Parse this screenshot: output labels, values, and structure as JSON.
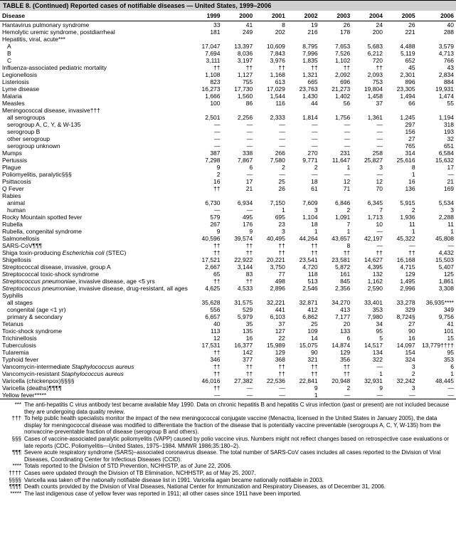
{
  "table_header": "TABLE 8. (Continued) Reported cases of notifiable diseases — United States, 1999–2006",
  "columns": [
    "Disease",
    "1999",
    "2000",
    "2001",
    "2002",
    "2003",
    "2004",
    "2005",
    "2006"
  ],
  "col_widths": [
    "230px",
    "51px",
    "51px",
    "51px",
    "51px",
    "51px",
    "51px",
    "51px",
    "51px"
  ],
  "dash": "—",
  "rows": [
    {
      "l": "Hantavirus pulmonary syndrome",
      "v": [
        "33",
        "41",
        "8",
        "19",
        "26",
        "24",
        "26",
        "40"
      ]
    },
    {
      "l": "Hemolytic uremic syndrome, postdiarrheal",
      "v": [
        "181",
        "249",
        "202",
        "216",
        "178",
        "200",
        "221",
        "288"
      ]
    },
    {
      "l": "Hepatitis, viral, acute***",
      "v": [
        "",
        "",
        "",
        "",
        "",
        "",
        "",
        ""
      ]
    },
    {
      "l": "A",
      "i": 1,
      "v": [
        "17,047",
        "13,397",
        "10,609",
        "8,795",
        "7,653",
        "5,683",
        "4,488",
        "3,579"
      ]
    },
    {
      "l": "B",
      "i": 1,
      "v": [
        "7,694",
        "8,036",
        "7,843",
        "7,996",
        "7,526",
        "6,212",
        "5,119",
        "4,713"
      ]
    },
    {
      "l": "C",
      "i": 1,
      "v": [
        "3,111",
        "3,197",
        "3,976",
        "1,835",
        "1,102",
        "720",
        "652",
        "766"
      ]
    },
    {
      "l": "Influenza-associated pediatric mortality",
      "v": [
        "††",
        "††",
        "††",
        "††",
        "††",
        "††",
        "45",
        "43"
      ]
    },
    {
      "l": "Legionellosis",
      "v": [
        "1,108",
        "1,127",
        "1,168",
        "1,321",
        "2,092",
        "2,093",
        "2,301",
        "2,834"
      ]
    },
    {
      "l": "Listeriosis",
      "v": [
        "823",
        "755",
        "613",
        "665",
        "696",
        "753",
        "896",
        "884"
      ]
    },
    {
      "l": "Lyme disease",
      "v": [
        "16,273",
        "17,730",
        "17,029",
        "23,763",
        "21,273",
        "19,804",
        "23,305",
        "19,931"
      ]
    },
    {
      "l": "Malaria",
      "v": [
        "1,666",
        "1,560",
        "1,544",
        "1,430",
        "1,402",
        "1,458",
        "1,494",
        "1,474"
      ]
    },
    {
      "l": "Measles",
      "v": [
        "100",
        "86",
        "116",
        "44",
        "56",
        "37",
        "66",
        "55"
      ]
    },
    {
      "l": "Meningococcal disease, invasive†††",
      "v": [
        "",
        "",
        "",
        "",
        "",
        "",
        "",
        ""
      ]
    },
    {
      "l": "all serogroups",
      "i": 1,
      "v": [
        "2,501",
        "2,256",
        "2,333",
        "1,814",
        "1,756",
        "1,361",
        "1,245",
        "1,194"
      ]
    },
    {
      "l": "serogroup A, C, Y, & W-135",
      "i": 1,
      "v": [
        "—",
        "—",
        "—",
        "—",
        "—",
        "—",
        "297",
        "318"
      ]
    },
    {
      "l": "serogroup B",
      "i": 1,
      "v": [
        "—",
        "—",
        "—",
        "—",
        "—",
        "—",
        "156",
        "193"
      ]
    },
    {
      "l": "other serogroup",
      "i": 1,
      "v": [
        "—",
        "—",
        "—",
        "—",
        "—",
        "—",
        "27",
        "32"
      ]
    },
    {
      "l": "serogroup unknown",
      "i": 1,
      "v": [
        "—",
        "—",
        "—",
        "—",
        "—",
        "—",
        "765",
        "651"
      ]
    },
    {
      "l": "Mumps",
      "v": [
        "387",
        "338",
        "266",
        "270",
        "231",
        "258",
        "314",
        "6,584"
      ]
    },
    {
      "l": "Pertussis",
      "v": [
        "7,298",
        "7,867",
        "7,580",
        "9,771",
        "11,647",
        "25,827",
        "25,616",
        "15,632"
      ]
    },
    {
      "l": "Plague",
      "v": [
        "9",
        "6",
        "2",
        "2",
        "1",
        "3",
        "8",
        "17"
      ]
    },
    {
      "l": "Poliomyelitis, paralytic§§§",
      "v": [
        "2",
        "—",
        "—",
        "—",
        "—",
        "—",
        "1",
        "—"
      ]
    },
    {
      "l": "Psittacosis",
      "v": [
        "16",
        "17",
        "25",
        "18",
        "12",
        "12",
        "16",
        "21"
      ]
    },
    {
      "l": "Q Fever",
      "v": [
        "††",
        "21",
        "26",
        "61",
        "71",
        "70",
        "136",
        "169"
      ]
    },
    {
      "l": "Rabies",
      "v": [
        "",
        "",
        "",
        "",
        "",
        "",
        "",
        ""
      ]
    },
    {
      "l": "animal",
      "i": 1,
      "v": [
        "6,730",
        "6,934",
        "7,150",
        "7,609",
        "6,846",
        "6,345",
        "5,915",
        "5,534"
      ]
    },
    {
      "l": "human",
      "i": 1,
      "v": [
        "—",
        "—",
        "1",
        "3",
        "2",
        "7",
        "2",
        "3"
      ]
    },
    {
      "l": "Rocky Mountain spotted fever",
      "v": [
        "579",
        "495",
        "695",
        "1,104",
        "1,091",
        "1,713",
        "1,936",
        "2,288"
      ]
    },
    {
      "l": "Rubella",
      "v": [
        "267",
        "176",
        "23",
        "18",
        "7",
        "10",
        "11",
        "11"
      ]
    },
    {
      "l": "Rubella, congenital syndrome",
      "v": [
        "9",
        "9",
        "3",
        "1",
        "1",
        "—",
        "1",
        "1"
      ]
    },
    {
      "l": "Salmonellosis",
      "v": [
        "40,596",
        "39,574",
        "40,495",
        "44,264",
        "43,657",
        "42,197",
        "45,322",
        "45,808"
      ]
    },
    {
      "l": "SARS-CoV¶¶¶",
      "v": [
        "††",
        "††",
        "††",
        "††",
        "8",
        "—",
        "—",
        "—"
      ]
    },
    {
      "l": "Shiga toxin-producing Escherichia coli (STEC)",
      "it": true,
      "v": [
        "††",
        "††",
        "††",
        "††",
        "††",
        "††",
        "††",
        "4,432"
      ]
    },
    {
      "l": "Shigellosis",
      "v": [
        "17,521",
        "22,922",
        "20,221",
        "23,541",
        "23,581",
        "14,627",
        "16,168",
        "15,503"
      ]
    },
    {
      "l": "Streptococcal disease, invasive, group A",
      "v": [
        "2,667",
        "3,144",
        "3,750",
        "4,720",
        "5,872",
        "4,395",
        "4,715",
        "5,407"
      ]
    },
    {
      "l": "Streptococcal toxic-shock syndrome",
      "v": [
        "65",
        "83",
        "77",
        "118",
        "161",
        "132",
        "129",
        "125"
      ]
    },
    {
      "l": "Streptococcus pneumoniae, invasive disease, age <5 yrs",
      "it": true,
      "v": [
        "††",
        "††",
        "498",
        "513",
        "845",
        "1,162",
        "1,495",
        "1,861"
      ]
    },
    {
      "l": "Streptococcus pneumoniae, invasive disease, drug-resistant, all ages",
      "it": true,
      "v": [
        "4,625",
        "4,533",
        "2,896",
        "2,546",
        "2,356",
        "2,590",
        "2,996",
        "3,308"
      ]
    },
    {
      "l": "Syphilis",
      "v": [
        "",
        "",
        "",
        "",
        "",
        "",
        "",
        ""
      ]
    },
    {
      "l": "all stages",
      "i": 1,
      "v": [
        "35,628",
        "31,575",
        "32,221",
        "32,871",
        "34,270",
        "33,401",
        "33,278",
        "36,935****"
      ]
    },
    {
      "l": "congenital (age <1 yr)",
      "i": 1,
      "v": [
        "556",
        "529",
        "441",
        "412",
        "413",
        "353",
        "329",
        "349"
      ]
    },
    {
      "l": "primary & secondary",
      "i": 1,
      "v": [
        "6,657",
        "5,979",
        "6,103",
        "6,862",
        "7,177",
        "7,980",
        "8,724§",
        "9,756"
      ]
    },
    {
      "l": "Tetanus",
      "v": [
        "40",
        "35",
        "37",
        "25",
        "20",
        "34",
        "27",
        "41"
      ]
    },
    {
      "l": "Toxic-shock syndrome",
      "v": [
        "113",
        "135",
        "127",
        "109",
        "133",
        "95",
        "90",
        "101"
      ]
    },
    {
      "l": "Trichinellosis",
      "v": [
        "12",
        "16",
        "22",
        "14",
        "6",
        "5",
        "16",
        "15"
      ]
    },
    {
      "l": "Tuberculosis",
      "v": [
        "17,531",
        "16,377",
        "15,989",
        "15,075",
        "14,874",
        "14,517",
        "14,097",
        "13,779††††"
      ]
    },
    {
      "l": "Tularemia",
      "v": [
        "††",
        "142",
        "129",
        "90",
        "129",
        "134",
        "154",
        "95"
      ]
    },
    {
      "l": "Typhoid fever",
      "v": [
        "346",
        "377",
        "368",
        "321",
        "356",
        "322",
        "324",
        "353"
      ]
    },
    {
      "l": "Vancomycin-intermediate Staphylococcus aureus",
      "it": true,
      "v": [
        "††",
        "††",
        "††",
        "††",
        "††",
        "—",
        "3",
        "6"
      ]
    },
    {
      "l": "Vancomycin-resistant Staphylococcus aureus",
      "it": true,
      "v": [
        "††",
        "††",
        "††",
        "††",
        "††",
        "1",
        "2",
        "1"
      ]
    },
    {
      "l": "Varicella (chickenpox)§§§§",
      "v": [
        "46,016",
        "27,382",
        "22,536",
        "22,841",
        "20,948",
        "32,931",
        "32,242",
        "48,445"
      ]
    },
    {
      "l": "Varicella (deaths)¶¶¶¶",
      "v": [
        "††",
        "—",
        "—",
        "9",
        "2",
        "9",
        "3",
        "—"
      ]
    },
    {
      "l": "Yellow fever*****",
      "v": [
        "—",
        "—",
        "—",
        "1",
        "—",
        "—",
        "—",
        "—"
      ]
    }
  ],
  "footnotes": [
    {
      "s": "***",
      "t": "The anti-hepatitis C virus antibody test became available May 1990. Data on chronic hepatitis B and hepatitis C virus infection (past or present) are not included because they are undergoing data quality review."
    },
    {
      "s": "†††",
      "t": "To help public health specialists monitor the impact of the new meningococcal conjugate vaccine (Menactra, licensed in the United States in January 2005), the data display for meningococcal disease was modified to differentiate the fraction of the disease that is potentially vaccine preventable (serogroups A, C, Y, W-135) from the nonvaccine-preventable fraction of disease (serogroup B and others)."
    },
    {
      "s": "§§§",
      "t": "Cases of vaccine-associated paralytic poliomyelitis (VAPP) caused by polio vaccine virus. Numbers might not reflect changes based on retrospective case evaluations or late reports (CDC. Poliomyelitis—United States, 1975–1984. MMWR 1986;35:180–2)."
    },
    {
      "s": "¶¶¶",
      "t": "Severe acute respiratory syndrome (SARS)–associated coronavirus disease. The total number of SARS-CoV cases includes all cases reported to the Division of Viral Diseases, Coordinating Center for Infectious Diseases (CCID)."
    },
    {
      "s": "****",
      "t": "Totals reported to the Division of STD Prevention, NCHHSTP, as of June 22, 2006."
    },
    {
      "s": "††††",
      "t": "Cases were updated through the Division of TB Elimination, NCHHSTP, as of May 25, 2007."
    },
    {
      "s": "§§§§",
      "t": "Varicella was taken off the nationally notifiable disease list in 1991. Varicella again became nationally notifiable in 2003."
    },
    {
      "s": "¶¶¶¶",
      "t": "Death counts provided by the Division of Viral Diseases, National Center for Immunization and Respiratory Diseases, as of December 31, 2006."
    },
    {
      "s": "*****",
      "t": "The last indigenous case of yellow fever was reported in 1911; all other cases since 1911 have been imported."
    }
  ]
}
